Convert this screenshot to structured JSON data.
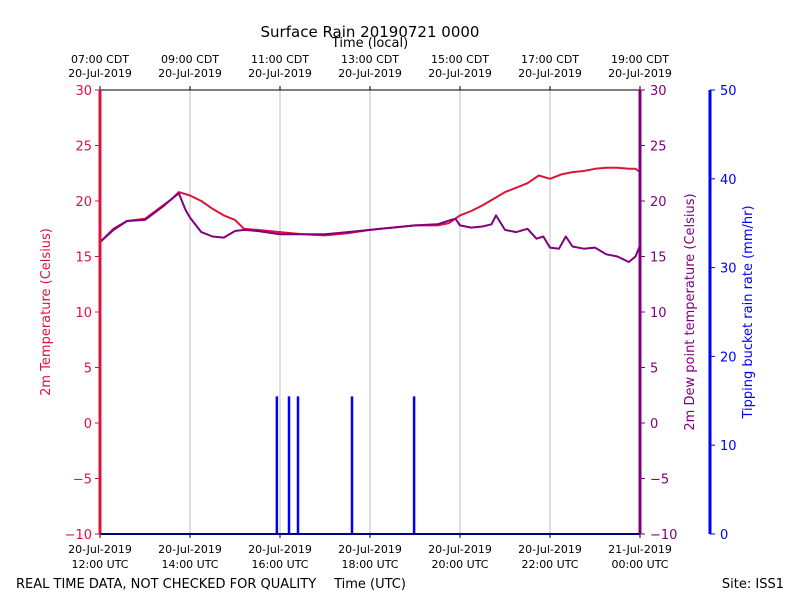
{
  "chart_data": {
    "type": "line",
    "title": "Surface Rain 20190721 0000",
    "top_axis_label": "Time (local)",
    "xlabel": "Time (UTC)",
    "footer_left": "REAL TIME DATA, NOT CHECKED FOR QUALITY",
    "footer_right": "Site: ISS1",
    "x_range_hours_utc": [
      12,
      24
    ],
    "grid": true,
    "x_ticks": [
      {
        "hour": 12,
        "utc_lines": [
          "20-Jul-2019",
          "12:00 UTC"
        ],
        "local_lines": [
          "07:00 CDT",
          "20-Jul-2019"
        ]
      },
      {
        "hour": 14,
        "utc_lines": [
          "20-Jul-2019",
          "14:00 UTC"
        ],
        "local_lines": [
          "09:00 CDT",
          "20-Jul-2019"
        ]
      },
      {
        "hour": 16,
        "utc_lines": [
          "20-Jul-2019",
          "16:00 UTC"
        ],
        "local_lines": [
          "11:00 CDT",
          "20-Jul-2019"
        ]
      },
      {
        "hour": 18,
        "utc_lines": [
          "20-Jul-2019",
          "18:00 UTC"
        ],
        "local_lines": [
          "13:00 CDT",
          "20-Jul-2019"
        ]
      },
      {
        "hour": 20,
        "utc_lines": [
          "20-Jul-2019",
          "20:00 UTC"
        ],
        "local_lines": [
          "15:00 CDT",
          "20-Jul-2019"
        ]
      },
      {
        "hour": 22,
        "utc_lines": [
          "20-Jul-2019",
          "22:00 UTC"
        ],
        "local_lines": [
          "17:00 CDT",
          "20-Jul-2019"
        ]
      },
      {
        "hour": 24,
        "utc_lines": [
          "21-Jul-2019",
          "00:00 UTC"
        ],
        "local_lines": [
          "19:00 CDT",
          "20-Jul-2019"
        ]
      }
    ],
    "axes": {
      "left": {
        "label": "2m Temperature (Celsius)",
        "ylim": [
          -10,
          30
        ],
        "ticks": [
          -10,
          -5,
          0,
          5,
          10,
          15,
          20,
          25,
          30
        ],
        "tick_labels": [
          "−10",
          "−5",
          "0",
          "5",
          "10",
          "15",
          "20",
          "25",
          "30"
        ],
        "color": "#dc143c"
      },
      "right": {
        "label": "2m Dew point temperature (Celsius)",
        "ylim": [
          -10,
          30
        ],
        "ticks": [
          -10,
          -5,
          0,
          5,
          10,
          15,
          20,
          25,
          30
        ],
        "tick_labels": [
          "−10",
          "−5",
          "0",
          "5",
          "10",
          "15",
          "20",
          "25",
          "30"
        ],
        "color": "#800080"
      },
      "rain": {
        "label": "Tipping bucket rain rate (mm/hr)",
        "ylim": [
          0,
          50
        ],
        "ticks": [
          0,
          10,
          20,
          30,
          40,
          50
        ],
        "tick_labels": [
          "0",
          "10",
          "20",
          "30",
          "40",
          "50"
        ],
        "color": "#0000ff"
      }
    },
    "series": [
      {
        "name": "2m Temperature",
        "axis": "left",
        "color": "#dc143c",
        "x_hours": [
          12.0,
          12.3,
          12.6,
          13.0,
          13.4,
          13.6,
          13.75,
          14.0,
          14.25,
          14.5,
          14.75,
          15.0,
          15.2,
          15.5,
          16.0,
          16.5,
          17.0,
          17.5,
          18.0,
          18.5,
          19.0,
          19.5,
          19.75,
          20.0,
          20.25,
          20.5,
          20.75,
          21.0,
          21.25,
          21.5,
          21.75,
          22.0,
          22.25,
          22.5,
          22.75,
          23.0,
          23.25,
          23.5,
          23.75,
          23.9,
          24.0
        ],
        "values": [
          16.3,
          17.5,
          18.2,
          18.4,
          19.6,
          20.2,
          20.8,
          20.5,
          20.0,
          19.3,
          18.7,
          18.3,
          17.5,
          17.4,
          17.2,
          17.0,
          16.9,
          17.1,
          17.4,
          17.6,
          17.8,
          17.8,
          18.0,
          18.7,
          19.1,
          19.6,
          20.2,
          20.8,
          21.2,
          21.6,
          22.3,
          22.0,
          22.4,
          22.6,
          22.7,
          22.9,
          23.0,
          23.0,
          22.9,
          22.9,
          22.6
        ]
      },
      {
        "name": "2m Dew point temperature",
        "axis": "right",
        "color": "#800080",
        "x_hours": [
          12.0,
          12.3,
          12.6,
          13.0,
          13.4,
          13.6,
          13.75,
          13.9,
          14.0,
          14.25,
          14.5,
          14.75,
          15.0,
          15.2,
          15.5,
          16.0,
          16.5,
          17.0,
          17.5,
          18.0,
          18.5,
          19.0,
          19.5,
          19.8,
          19.9,
          20.0,
          20.25,
          20.5,
          20.7,
          20.8,
          21.0,
          21.25,
          21.5,
          21.7,
          21.85,
          22.0,
          22.2,
          22.35,
          22.5,
          22.75,
          23.0,
          23.25,
          23.5,
          23.75,
          23.9,
          24.0
        ],
        "values": [
          16.3,
          17.4,
          18.2,
          18.3,
          19.5,
          20.2,
          20.7,
          19.2,
          18.5,
          17.2,
          16.8,
          16.7,
          17.3,
          17.4,
          17.3,
          17.0,
          17.0,
          17.0,
          17.2,
          17.4,
          17.6,
          17.8,
          17.9,
          18.3,
          18.4,
          17.8,
          17.6,
          17.7,
          17.9,
          18.7,
          17.4,
          17.2,
          17.5,
          16.6,
          16.8,
          15.8,
          15.7,
          16.8,
          15.9,
          15.7,
          15.8,
          15.2,
          15.0,
          14.5,
          15.0,
          16.0
        ]
      },
      {
        "name": "Tipping bucket rain rate",
        "axis": "rain",
        "color": "#0000ff",
        "x_hours": [
          15.93,
          16.2,
          16.4,
          17.6,
          18.98
        ],
        "values": [
          15.5,
          15.5,
          15.5,
          15.5,
          15.5
        ],
        "baseline": 0
      }
    ]
  }
}
